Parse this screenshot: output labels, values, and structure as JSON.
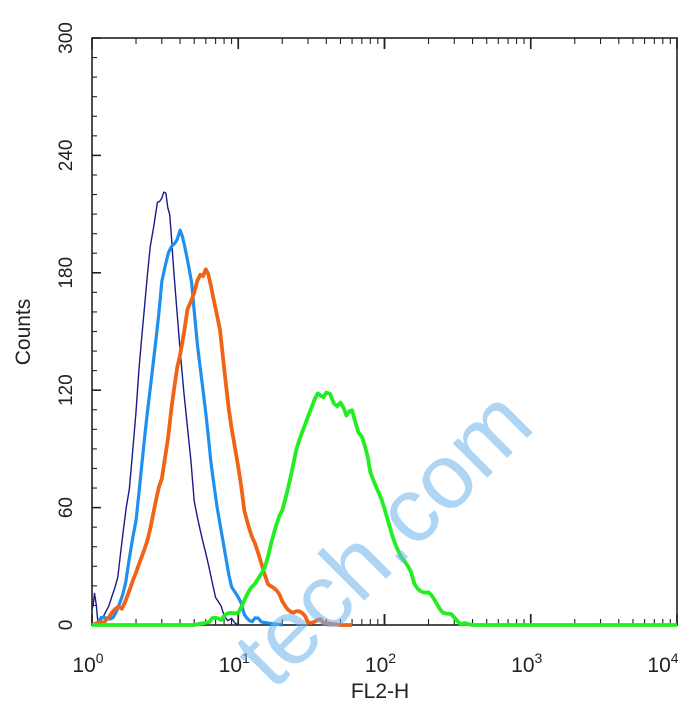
{
  "chart_data": {
    "type": "line",
    "xlabel": "FL2-H",
    "ylabel": "Counts",
    "xscale": "log",
    "xlim": [
      1,
      10000
    ],
    "ylim": [
      0,
      300
    ],
    "y_ticks": [
      "0",
      "60",
      "120",
      "180",
      "240",
      "300"
    ],
    "x_ticks": [
      {
        "base": "10",
        "exp": "0"
      },
      {
        "base": "10",
        "exp": "1"
      },
      {
        "base": "10",
        "exp": "2"
      },
      {
        "base": "10",
        "exp": "3"
      },
      {
        "base": "10",
        "exp": "4"
      }
    ],
    "grid": false,
    "legend": "none",
    "watermark": "tech.com",
    "series": [
      {
        "color": "#1a1a8c",
        "stroke_weight": "thin",
        "x": [
          1.0,
          1.04,
          1.1,
          1.3,
          1.5,
          1.8,
          2.1,
          2.5,
          2.8,
          3.0,
          3.2,
          3.4,
          3.6,
          4.0,
          4.5,
          5.0,
          6.0,
          7.0,
          8.0,
          9.0,
          10.0
        ],
        "y": [
          8,
          15,
          2,
          8,
          25,
          70,
          130,
          195,
          215,
          218,
          222,
          208,
          185,
          140,
          100,
          65,
          35,
          15,
          5,
          2,
          0
        ]
      },
      {
        "color": "#1e90ef",
        "stroke_weight": "medium",
        "x": [
          1.0,
          1.4,
          1.7,
          2.0,
          2.5,
          3.0,
          3.5,
          4.0,
          4.3,
          4.8,
          5.5,
          6.5,
          7.5,
          9.0,
          11.0,
          13.0,
          16.0,
          20.0
        ],
        "y": [
          0,
          5,
          20,
          55,
          120,
          175,
          195,
          200,
          195,
          175,
          130,
          85,
          50,
          20,
          6,
          2,
          1,
          0
        ]
      },
      {
        "color": "#f06418",
        "stroke_weight": "thick",
        "x": [
          1.0,
          1.3,
          1.6,
          2.0,
          2.5,
          3.0,
          3.5,
          4.0,
          4.5,
          5.0,
          5.5,
          6.0,
          6.5,
          7.5,
          9.0,
          11.0,
          13.0,
          16.0,
          20.0,
          25.0,
          30.0,
          40.0,
          50.0,
          60.0
        ],
        "y": [
          0,
          3,
          10,
          25,
          50,
          75,
          110,
          140,
          160,
          170,
          180,
          180,
          175,
          150,
          100,
          60,
          40,
          22,
          12,
          6,
          3,
          1,
          0,
          0
        ]
      },
      {
        "color": "#22ee22",
        "stroke_weight": "thick",
        "x": [
          1.0,
          5.0,
          8.0,
          10.0,
          13.0,
          16.0,
          20.0,
          25.0,
          30.0,
          35.0,
          40.0,
          45.0,
          50.0,
          55.0,
          60.0,
          70.0,
          80.0,
          100.0,
          130.0,
          160.0,
          200.0,
          250.0,
          300.0,
          350.0,
          400.0,
          500.0,
          10000.0
        ],
        "y": [
          0,
          0,
          3,
          8,
          20,
          35,
          60,
          88,
          108,
          118,
          118,
          115,
          112,
          108,
          110,
          95,
          80,
          58,
          35,
          22,
          15,
          8,
          3,
          1,
          0,
          0,
          0
        ]
      }
    ]
  }
}
